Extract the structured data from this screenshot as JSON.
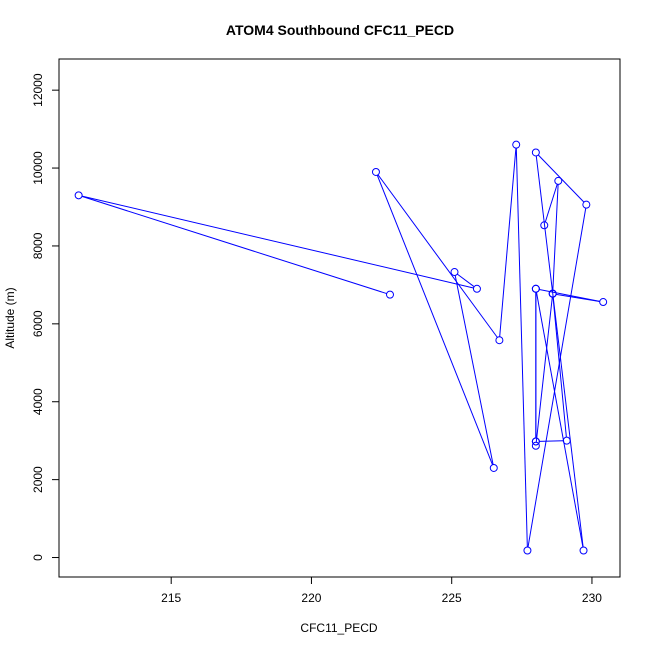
{
  "chart_data": {
    "type": "line",
    "title": "ATOM4 Southbound CFC11_PECD",
    "xlabel": "CFC11_PECD",
    "ylabel": "Altitude (m)",
    "xlim": [
      211,
      231
    ],
    "ylim": [
      -500,
      12800
    ],
    "xticks": [
      {
        "value": 215,
        "label": "215"
      },
      {
        "value": 220,
        "label": "220"
      },
      {
        "value": 225,
        "label": "225"
      },
      {
        "value": 230,
        "label": "230"
      }
    ],
    "yticks": [
      {
        "value": 0,
        "label": "0"
      },
      {
        "value": 2000,
        "label": "2000"
      },
      {
        "value": 4000,
        "label": "4000"
      },
      {
        "value": 6000,
        "label": "6000"
      },
      {
        "value": 8000,
        "label": "8000"
      },
      {
        "value": 10000,
        "label": "10000"
      },
      {
        "value": 12000,
        "label": "12000"
      }
    ],
    "grid": false,
    "legend": "none",
    "color": "#0000ff",
    "series": [
      {
        "points": [
          {
            "x": 222.8,
            "y": 6750
          },
          {
            "x": 211.7,
            "y": 9300
          },
          {
            "x": 225.9,
            "y": 6900
          },
          {
            "x": 225.1,
            "y": 7330
          },
          {
            "x": 226.5,
            "y": 2300
          },
          {
            "x": 222.3,
            "y": 9900
          },
          {
            "x": 226.7,
            "y": 5580
          },
          {
            "x": 227.3,
            "y": 10600
          },
          {
            "x": 227.7,
            "y": 180
          },
          {
            "x": 229.8,
            "y": 9060
          },
          {
            "x": 228.0,
            "y": 10400
          },
          {
            "x": 229.7,
            "y": 180
          },
          {
            "x": 228.0,
            "y": 6900
          },
          {
            "x": 228.0,
            "y": 2980
          },
          {
            "x": 228.0,
            "y": 2870
          },
          {
            "x": 228.6,
            "y": 6770
          },
          {
            "x": 230.4,
            "y": 6560
          },
          {
            "x": 228.0,
            "y": 6900
          },
          {
            "x": 228.0,
            "y": 2980
          },
          {
            "x": 229.1,
            "y": 3000
          },
          {
            "x": 228.6,
            "y": 6780
          },
          {
            "x": 228.8,
            "y": 9670
          },
          {
            "x": 228.3,
            "y": 8530
          }
        ]
      }
    ]
  }
}
